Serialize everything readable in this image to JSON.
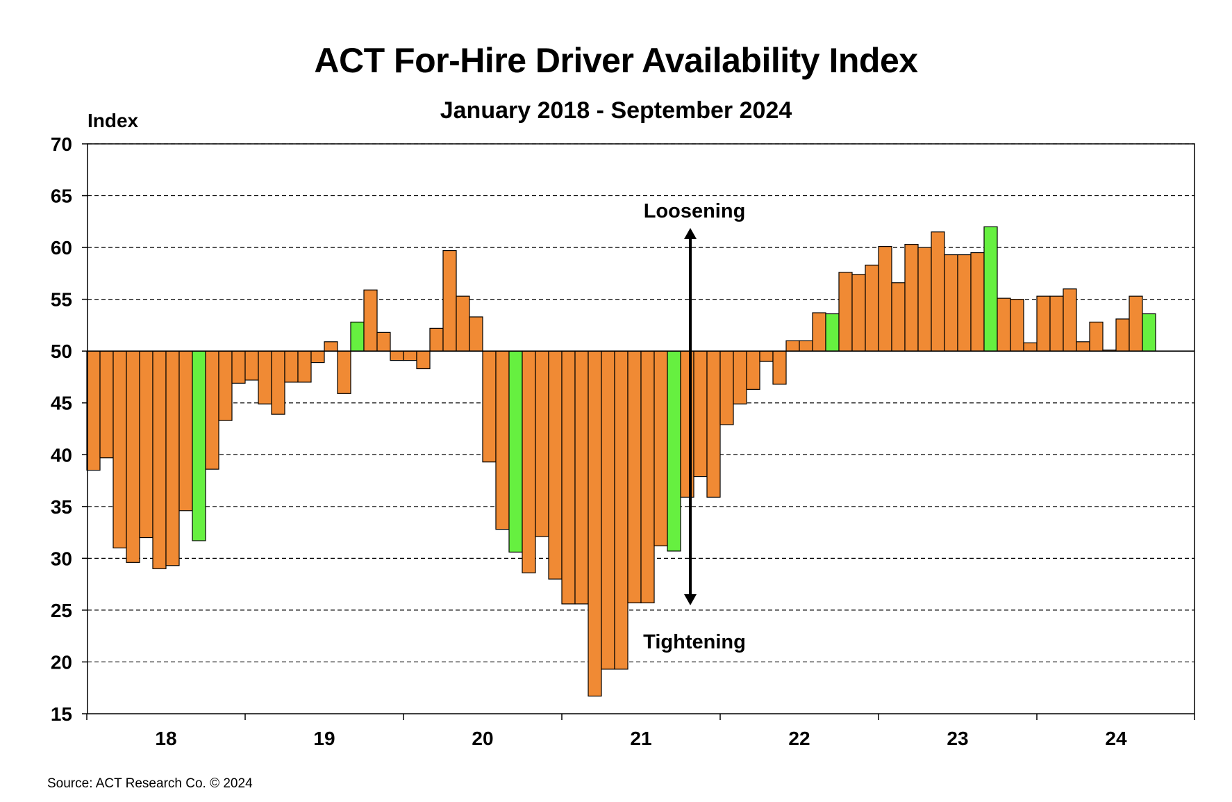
{
  "chart_data": {
    "type": "bar",
    "title": "ACT For-Hire Driver Availability Index",
    "subtitle": "January 2018 - September 2024",
    "ylabel": "Index",
    "source": "Source:  ACT Research Co. © 2024",
    "ylim": [
      15,
      70
    ],
    "baseline": 50,
    "yticks": [
      "15",
      "20",
      "25",
      "30",
      "35",
      "40",
      "45",
      "50",
      "55",
      "60",
      "65",
      "70"
    ],
    "x_year_labels": [
      "18",
      "19",
      "20",
      "21",
      "22",
      "23",
      "24"
    ],
    "grid": "horizontal dashed",
    "colors": {
      "normal": "#F08A34",
      "highlight": "#66F040",
      "edge": "#000000"
    },
    "annotations": {
      "up_label": "Loosening",
      "down_label": "Tightening"
    },
    "series": [
      {
        "values": [
          38.5,
          39.7,
          31,
          29.6,
          32,
          29,
          29.3,
          34.6,
          31.7,
          38.6,
          43.3,
          46.9,
          47.2,
          44.9,
          43.9,
          47,
          47,
          48.9,
          50.9,
          45.9,
          52.8,
          55.9,
          51.8,
          49.1,
          49.1,
          48.3,
          52.2,
          59.7,
          55.3,
          53.3,
          39.3,
          32.8,
          30.6,
          28.6,
          32.1,
          28,
          25.6,
          25.6,
          16.7,
          19.3,
          19.3,
          25.7,
          25.7,
          31.2,
          30.7,
          35.9,
          37.9,
          35.9,
          42.9,
          44.9,
          46.3,
          49,
          46.8,
          51,
          51,
          53.7,
          53.6,
          57.6,
          57.4,
          58.3,
          60.1,
          56.6,
          60.3,
          60,
          61.5,
          59.3,
          59.3,
          59.5,
          62,
          55.1,
          55,
          50.8,
          55.3,
          55.3,
          56,
          50.9,
          52.8,
          50.1,
          53.1,
          55.3,
          53.6
        ],
        "highlight_indices": [
          8,
          20,
          32,
          44,
          56,
          68,
          80
        ]
      }
    ]
  }
}
